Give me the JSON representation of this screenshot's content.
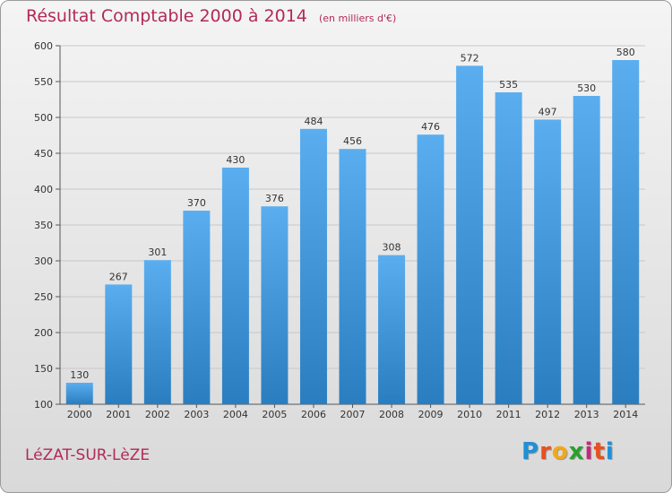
{
  "header": {
    "title": "Résultat Comptable 2000 à 2014",
    "unit": "(en milliers d'€)"
  },
  "footer": {
    "commune": "LéZAT-SUR-LèZE",
    "logo_letters": [
      "P",
      "r",
      "o",
      "x",
      "i",
      "t",
      "i"
    ],
    "logo_colors": [
      "#1e90d6",
      "#e8501f",
      "#f0a81c",
      "#2aa02c",
      "#c6287a",
      "#e8501f",
      "#1e90d6"
    ]
  },
  "colors": {
    "bar_light": "#5aaef0",
    "bar_dark": "#2a7ec0",
    "title": "#b22a57",
    "grid": "#c8c8c8",
    "axis_text": "#333333"
  },
  "chart_data": {
    "type": "bar",
    "categories": [
      "2000",
      "2001",
      "2002",
      "2003",
      "2004",
      "2005",
      "2006",
      "2007",
      "2008",
      "2009",
      "2010",
      "2011",
      "2012",
      "2013",
      "2014"
    ],
    "values": [
      130,
      267,
      301,
      370,
      430,
      376,
      484,
      456,
      308,
      476,
      572,
      535,
      497,
      530,
      580
    ],
    "ylim": [
      100,
      600
    ],
    "yticks": [
      100,
      150,
      200,
      250,
      300,
      350,
      400,
      450,
      500,
      550,
      600
    ],
    "grid": true,
    "title": "Résultat Comptable 2000 à 2014",
    "xlabel": "",
    "ylabel": ""
  }
}
